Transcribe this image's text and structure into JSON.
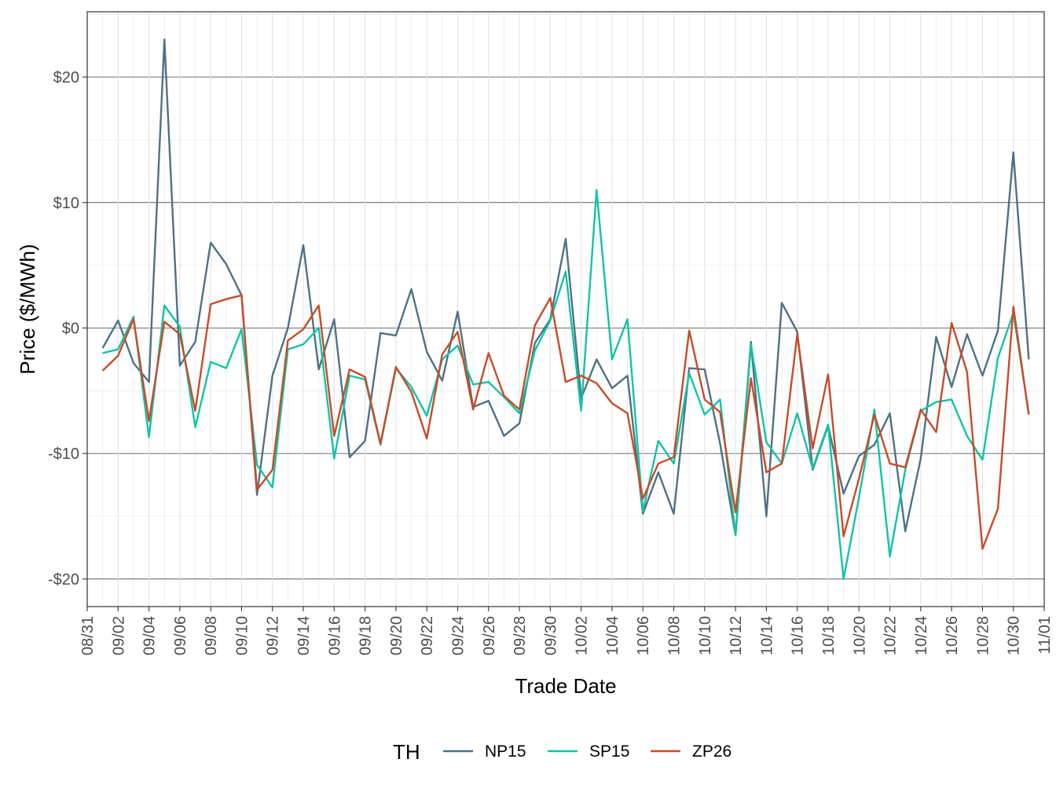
{
  "chart_data": {
    "type": "line",
    "xlabel": "Trade Date",
    "ylabel": "Price ($/MWh)",
    "ylim": [
      -22.2,
      25.2
    ],
    "y_ticks": [
      {
        "value": 20,
        "label": "$20"
      },
      {
        "value": 10,
        "label": "$10"
      },
      {
        "value": 0,
        "label": "$0"
      },
      {
        "value": -10,
        "label": "-$10"
      },
      {
        "value": -20,
        "label": "-$20"
      }
    ],
    "x_start": "08/31",
    "x_end": "11/01",
    "x_tick_labels": [
      "08/31",
      "09/02",
      "09/04",
      "09/06",
      "09/08",
      "09/10",
      "09/12",
      "09/14",
      "09/16",
      "09/18",
      "09/20",
      "09/22",
      "09/24",
      "09/26",
      "09/28",
      "09/30",
      "10/02",
      "10/04",
      "10/06",
      "10/08",
      "10/10",
      "10/12",
      "10/14",
      "10/16",
      "10/18",
      "10/20",
      "10/22",
      "10/24",
      "10/26",
      "10/28",
      "10/30",
      "11/01"
    ],
    "x": [
      "09/01",
      "09/02",
      "09/03",
      "09/04",
      "09/05",
      "09/06",
      "09/07",
      "09/08",
      "09/09",
      "09/10",
      "09/11",
      "09/12",
      "09/13",
      "09/14",
      "09/15",
      "09/16",
      "09/17",
      "09/18",
      "09/19",
      "09/20",
      "09/21",
      "09/22",
      "09/23",
      "09/24",
      "09/25",
      "09/26",
      "09/27",
      "09/28",
      "09/29",
      "09/30",
      "10/01",
      "10/02",
      "10/03",
      "10/04",
      "10/05",
      "10/06",
      "10/07",
      "10/08",
      "10/09",
      "10/10",
      "10/11",
      "10/12",
      "10/13",
      "10/14",
      "10/15",
      "10/16",
      "10/17",
      "10/18",
      "10/19",
      "10/20",
      "10/21",
      "10/22",
      "10/23",
      "10/24",
      "10/25",
      "10/26",
      "10/27",
      "10/28",
      "10/29",
      "10/30",
      "10/31"
    ],
    "series": [
      {
        "name": "NP15",
        "color": "#4e7184",
        "values": [
          -1.6,
          0.6,
          -2.8,
          -4.3,
          23.0,
          -3.0,
          -1.1,
          6.8,
          5.1,
          2.6,
          -13.3,
          -3.8,
          0.0,
          6.6,
          -3.3,
          0.7,
          -10.3,
          -9.0,
          -0.4,
          -0.6,
          3.1,
          -1.9,
          -4.2,
          1.3,
          -6.3,
          -5.8,
          -8.6,
          -7.6,
          -1.2,
          0.7,
          7.1,
          -5.6,
          -2.5,
          -4.8,
          -3.8,
          -14.8,
          -11.5,
          -14.8,
          -3.2,
          -3.3,
          -9.2,
          -16.5,
          -1.1,
          -15.0,
          2.0,
          -0.3,
          -11.3,
          -7.8,
          -13.2,
          -10.2,
          -9.3,
          -6.8,
          -16.2,
          -10.4,
          -0.7,
          -4.7,
          -0.5,
          -3.8,
          -0.2,
          14.0,
          -2.5
        ]
      },
      {
        "name": "SP15",
        "color": "#10c4a6",
        "values": [
          -2.0,
          -1.7,
          0.9,
          -8.7,
          1.8,
          0.1,
          -7.9,
          -2.7,
          -3.2,
          -0.1,
          -10.9,
          -12.7,
          -1.7,
          -1.3,
          0.0,
          -10.4,
          -3.8,
          -4.1,
          -9.3,
          -3.2,
          -4.7,
          -7.0,
          -2.5,
          -1.4,
          -4.5,
          -4.3,
          -5.5,
          -6.8,
          -1.8,
          0.6,
          4.5,
          -6.6,
          11.0,
          -2.5,
          0.7,
          -14.6,
          -9.0,
          -10.8,
          -3.6,
          -6.9,
          -5.7,
          -16.5,
          -1.3,
          -9.1,
          -10.8,
          -6.8,
          -11.2,
          -7.7,
          -20.0,
          -13.5,
          -6.5,
          -18.2,
          -11.3,
          -6.6,
          -5.9,
          -5.7,
          -8.6,
          -10.5,
          -2.4,
          1.2,
          -6.8
        ]
      },
      {
        "name": "ZP26",
        "color": "#c84b28",
        "values": [
          -3.4,
          -2.2,
          0.7,
          -7.4,
          0.5,
          -0.5,
          -6.6,
          1.9,
          2.3,
          2.6,
          -12.9,
          -11.3,
          -1.0,
          -0.1,
          1.8,
          -8.6,
          -3.3,
          -3.9,
          -9.2,
          -3.1,
          -5.1,
          -8.8,
          -2.1,
          -0.3,
          -6.5,
          -2.0,
          -5.4,
          -6.5,
          0.2,
          2.4,
          -4.3,
          -3.8,
          -4.4,
          -6.0,
          -6.8,
          -13.6,
          -10.8,
          -10.3,
          -0.2,
          -5.7,
          -6.7,
          -14.7,
          -4.0,
          -11.5,
          -10.8,
          -0.5,
          -9.6,
          -3.7,
          -16.6,
          -12.0,
          -6.9,
          -10.8,
          -11.1,
          -6.5,
          -8.3,
          0.4,
          -3.5,
          -17.6,
          -14.4,
          1.7,
          -6.9
        ]
      }
    ],
    "legend": {
      "title": "TH",
      "position": "bottom",
      "entries": [
        "NP15",
        "SP15",
        "ZP26"
      ]
    },
    "grid": true
  }
}
